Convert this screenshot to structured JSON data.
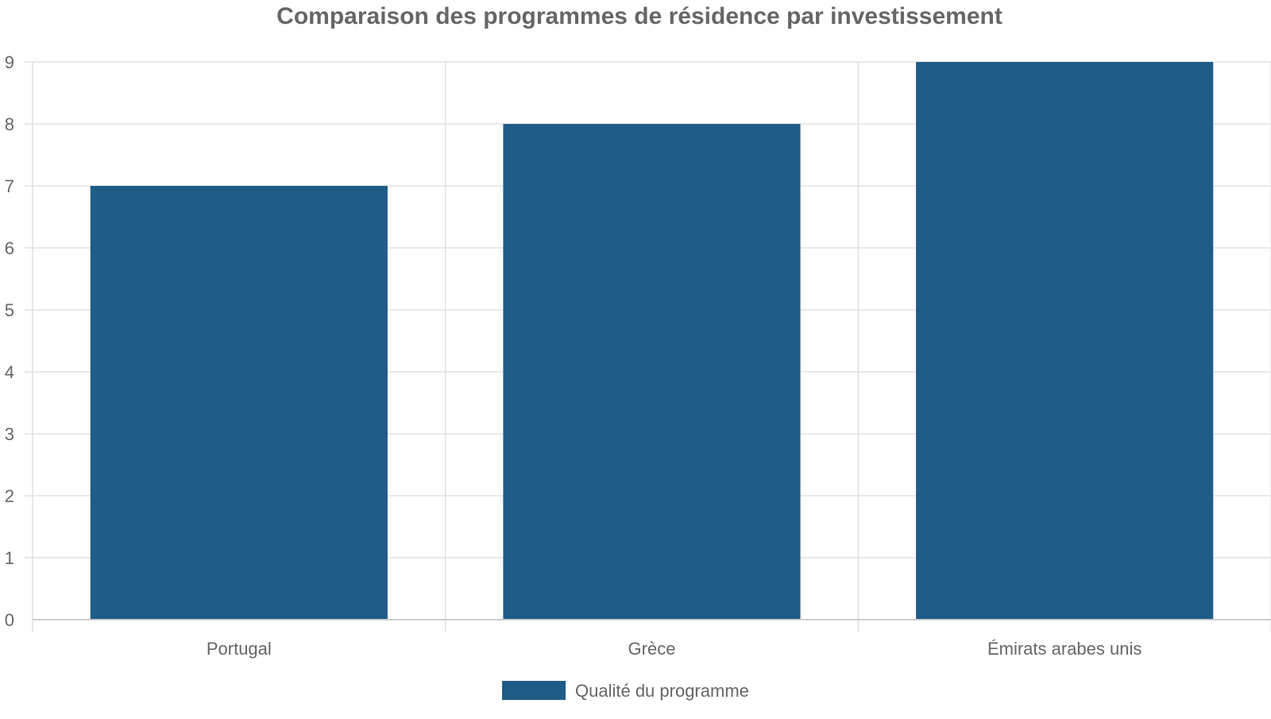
{
  "chart_data": {
    "type": "bar",
    "title": "Comparaison des programmes de résidence par investissement",
    "categories": [
      "Portugal",
      "Grèce",
      "Émirats arabes unis"
    ],
    "series": [
      {
        "name": "Qualité du programme",
        "values": [
          7,
          8,
          9
        ],
        "color": "#1f5c87"
      }
    ],
    "ylim": [
      0,
      9
    ],
    "yticks": [
      "0",
      "1",
      "2",
      "3",
      "4",
      "5",
      "6",
      "7",
      "8",
      "9"
    ],
    "grid": true,
    "legend_position": "bottom-center"
  }
}
